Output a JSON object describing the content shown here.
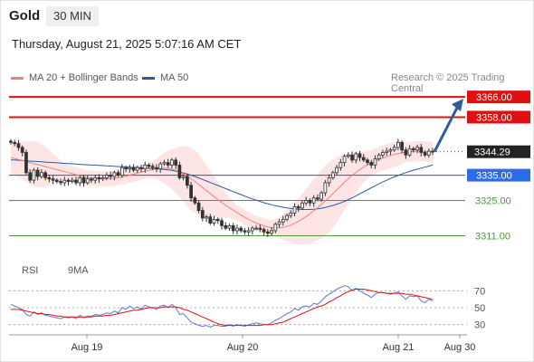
{
  "header": {
    "symbol": "Gold",
    "timeframe": "30 MIN",
    "datetime": "Thursday, August 21, 2025 5:07:16 AM CET"
  },
  "legend": {
    "ma20_label": "MA 20 + Bollinger Bands",
    "ma20_color": "#f08080",
    "ma50_label": "MA 50",
    "ma50_color": "#2e5aa0",
    "credit": "Research © 2025 Trading Central"
  },
  "rsi_legend": {
    "rsi_label": "RSI",
    "rsi_color": "#5a78d8",
    "ma_label": "9MA",
    "ma_color": "#e01010"
  },
  "colors": {
    "candle": "#333333",
    "resistance": "#e01010",
    "pivot": "#2e6be6",
    "support": "#4a9a3a",
    "arrow": "#2f5b9a",
    "band_fill": "#fde0e0"
  },
  "chart_data": {
    "type": "candlestick",
    "title": "Gold",
    "timeframe": "30 MIN",
    "ylim": [
      3304,
      3370
    ],
    "x_ticks": [
      "Aug 19",
      "Aug 20",
      "Aug 21",
      "Aug 30"
    ],
    "levels": [
      {
        "label": "3366.00",
        "value": 3366.0,
        "kind": "resistance"
      },
      {
        "label": "3358.00",
        "value": 3358.0,
        "kind": "resistance"
      },
      {
        "label": "3344.29",
        "value": 3344.29,
        "kind": "last-price"
      },
      {
        "label": "3335.00",
        "value": 3335.0,
        "kind": "pivot"
      },
      {
        "label": "3325.00",
        "value": 3325.0,
        "kind": "support"
      },
      {
        "label": "3311.00",
        "value": 3311.0,
        "kind": "support"
      }
    ],
    "closes": [
      3348.0,
      3347.5,
      3346.0,
      3344.0,
      3336.0,
      3333.0,
      3337.0,
      3334.5,
      3336.0,
      3334.0,
      3333.5,
      3333.0,
      3332.5,
      3332.0,
      3333.0,
      3332.5,
      3333.0,
      3332.0,
      3334.0,
      3332.0,
      3333.5,
      3333.0,
      3334.0,
      3333.5,
      3334.0,
      3335.0,
      3334.5,
      3336.0,
      3335.0,
      3338.0,
      3337.5,
      3338.0,
      3337.0,
      3338.0,
      3337.5,
      3339.0,
      3338.5,
      3338.0,
      3337.5,
      3339.5,
      3340.0,
      3339.0,
      3341.0,
      3339.0,
      3334.0,
      3334.5,
      3331.0,
      3326.0,
      3324.0,
      3321.0,
      3318.0,
      3318.5,
      3316.0,
      3317.5,
      3317.0,
      3315.0,
      3314.0,
      3315.0,
      3313.0,
      3314.0,
      3313.0,
      3312.5,
      3313.0,
      3314.0,
      3314.0,
      3313.5,
      3312.5,
      3312.0,
      3313.0,
      3315.5,
      3316.5,
      3317.5,
      3319.0,
      3320.0,
      3322.5,
      3322.0,
      3324.0,
      3325.0,
      3324.0,
      3326.0,
      3325.5,
      3328.0,
      3332.0,
      3334.0,
      3336.0,
      3338.0,
      3340.0,
      3342.5,
      3343.0,
      3341.0,
      3343.5,
      3342.0,
      3341.0,
      3340.0,
      3339.0,
      3341.5,
      3343.0,
      3344.0,
      3344.5,
      3345.0,
      3346.0,
      3348.0,
      3345.0,
      3343.0,
      3345.5,
      3345.0,
      3346.0,
      3344.0,
      3343.0,
      3344.5,
      3344.29
    ],
    "ma20": [
      3342.0,
      3341.6,
      3341.2,
      3340.8,
      3340.4,
      3340.0,
      3339.6,
      3339.2,
      3338.8,
      3338.4,
      3338.0,
      3337.6,
      3337.2,
      3336.8,
      3336.4,
      3336.0,
      3335.6,
      3335.2,
      3334.8,
      3334.4,
      3334.0,
      3333.8,
      3333.7,
      3333.6,
      3333.6,
      3333.6,
      3333.7,
      3333.8,
      3334.0,
      3334.3,
      3334.6,
      3335.0,
      3335.4,
      3335.8,
      3336.2,
      3336.6,
      3336.9,
      3337.2,
      3337.5,
      3337.7,
      3337.8,
      3337.7,
      3337.4,
      3336.9,
      3336.3,
      3335.5,
      3334.6,
      3333.6,
      3332.5,
      3331.3,
      3330.1,
      3328.9,
      3327.7,
      3326.5,
      3325.3,
      3324.2,
      3323.1,
      3322.1,
      3321.1,
      3320.1,
      3319.2,
      3318.3,
      3317.5,
      3316.7,
      3316.0,
      3315.4,
      3314.9,
      3314.5,
      3314.2,
      3314.1,
      3314.1,
      3314.3,
      3314.7,
      3315.2,
      3315.9,
      3316.7,
      3317.6,
      3318.6,
      3319.7,
      3320.9,
      3322.1,
      3323.4,
      3324.8,
      3326.2,
      3327.7,
      3329.2,
      3330.7,
      3332.2,
      3333.6,
      3334.9,
      3336.1,
      3337.2,
      3338.2,
      3339.1,
      3339.9,
      3340.6,
      3341.2,
      3341.8,
      3342.3,
      3342.8,
      3343.2,
      3343.6,
      3343.9,
      3344.1,
      3344.3,
      3344.4,
      3344.5,
      3344.5,
      3344.4,
      3344.3,
      3344.2
    ],
    "ma50": [
      3341.0,
      3341.0,
      3340.9,
      3340.8,
      3340.7,
      3340.6,
      3340.5,
      3340.4,
      3340.3,
      3340.2,
      3340.1,
      3340.0,
      3339.9,
      3339.8,
      3339.7,
      3339.6,
      3339.5,
      3339.4,
      3339.3,
      3339.2,
      3339.1,
      3339.0,
      3339.0,
      3338.9,
      3338.8,
      3338.7,
      3338.6,
      3338.5,
      3338.4,
      3338.4,
      3338.3,
      3338.2,
      3338.1,
      3338.0,
      3337.9,
      3337.8,
      3337.7,
      3337.6,
      3337.5,
      3337.4,
      3337.3,
      3337.1,
      3336.9,
      3336.6,
      3336.3,
      3335.9,
      3335.5,
      3335.0,
      3334.5,
      3333.9,
      3333.3,
      3332.7,
      3332.1,
      3331.5,
      3330.9,
      3330.3,
      3329.7,
      3329.1,
      3328.5,
      3327.9,
      3327.3,
      3326.7,
      3326.1,
      3325.6,
      3325.1,
      3324.6,
      3324.1,
      3323.7,
      3323.3,
      3322.9,
      3322.6,
      3322.3,
      3322.0,
      3321.8,
      3321.6,
      3321.5,
      3321.4,
      3321.4,
      3321.4,
      3321.5,
      3321.7,
      3321.9,
      3322.2,
      3322.6,
      3323.0,
      3323.5,
      3324.0,
      3324.6,
      3325.3,
      3326.0,
      3326.8,
      3327.6,
      3328.4,
      3329.2,
      3330.0,
      3330.8,
      3331.6,
      3332.3,
      3333.0,
      3333.7,
      3334.3,
      3334.9,
      3335.5,
      3336.0,
      3336.5,
      3337.0,
      3337.4,
      3337.8,
      3338.2,
      3338.6,
      3339.0
    ],
    "band_width": [
      6.0,
      6.5,
      7.0,
      7.5,
      8.0,
      8.5,
      9.0,
      9.0,
      8.5,
      8.0,
      7.0,
      6.0,
      5.0,
      4.0,
      3.5,
      3.0,
      3.0,
      3.0,
      3.0,
      3.0,
      3.0,
      3.0,
      3.0,
      3.0,
      3.0,
      3.0,
      3.0,
      3.0,
      3.0,
      3.0,
      3.0,
      3.0,
      3.0,
      3.0,
      3.0,
      3.0,
      3.0,
      3.5,
      4.0,
      5.0,
      6.0,
      7.0,
      8.0,
      9.0,
      10.0,
      11.0,
      12.0,
      12.5,
      12.5,
      12.0,
      11.0,
      10.0,
      9.0,
      8.0,
      7.0,
      6.0,
      5.0,
      4.0,
      3.5,
      3.0,
      3.0,
      3.0,
      3.0,
      3.0,
      3.0,
      3.0,
      3.0,
      3.0,
      3.0,
      3.5,
      4.0,
      5.0,
      6.0,
      7.0,
      8.0,
      9.0,
      10.0,
      11.0,
      12.0,
      12.5,
      13.0,
      13.5,
      14.0,
      14.0,
      13.5,
      13.0,
      12.0,
      11.0,
      10.0,
      9.0,
      8.0,
      7.0,
      6.0,
      5.5,
      5.0,
      5.0,
      5.0,
      5.0,
      5.0,
      5.0,
      5.0,
      5.0,
      4.5,
      4.0,
      4.0,
      4.0,
      4.0,
      4.0,
      4.0,
      4.0,
      4.0
    ],
    "projection": {
      "from": 3344.29,
      "to": 3366.0
    },
    "rsi": {
      "levels": [
        70,
        50,
        30
      ],
      "ylim": [
        20,
        80
      ],
      "values": [
        54,
        52,
        50,
        48,
        42,
        40,
        45,
        42,
        44,
        41,
        40,
        39,
        38,
        37,
        39,
        38,
        39,
        37,
        41,
        38,
        40,
        40,
        42,
        41,
        42,
        44,
        43,
        46,
        44,
        50,
        48,
        52,
        49,
        51,
        48,
        53,
        51,
        50,
        48,
        52,
        53,
        50,
        54,
        50,
        42,
        43,
        38,
        33,
        31,
        29,
        28,
        29,
        27,
        29,
        29,
        28,
        28,
        30,
        28,
        30,
        29,
        28,
        30,
        31,
        32,
        31,
        30,
        30,
        32,
        35,
        37,
        40,
        43,
        45,
        49,
        47,
        51,
        52,
        51,
        55,
        54,
        58,
        63,
        66,
        69,
        72,
        74,
        76,
        75,
        70,
        73,
        70,
        67,
        65,
        62,
        66,
        68,
        68,
        67,
        66,
        67,
        69,
        64,
        60,
        64,
        63,
        64,
        58,
        56,
        60,
        58
      ],
      "ma9": [
        48,
        48,
        48,
        47,
        46,
        45,
        44,
        43,
        43,
        42,
        42,
        41,
        40,
        40,
        39,
        39,
        39,
        39,
        39,
        39,
        39,
        39,
        40,
        40,
        40,
        41,
        41,
        42,
        43,
        44,
        45,
        46,
        47,
        47,
        48,
        49,
        50,
        50,
        50,
        50,
        51,
        51,
        51,
        51,
        50,
        48,
        47,
        45,
        43,
        41,
        39,
        37,
        35,
        33,
        31,
        30,
        29,
        29,
        29,
        29,
        29,
        29,
        29,
        29,
        29,
        29,
        30,
        30,
        30,
        31,
        32,
        33,
        35,
        37,
        39,
        41,
        43,
        45,
        47,
        49,
        51,
        52,
        54,
        57,
        59,
        62,
        64,
        67,
        69,
        71,
        72,
        72,
        72,
        71,
        70,
        69,
        68,
        68,
        67,
        67,
        67,
        67,
        67,
        66,
        66,
        65,
        64,
        63,
        62,
        61,
        60
      ]
    }
  }
}
